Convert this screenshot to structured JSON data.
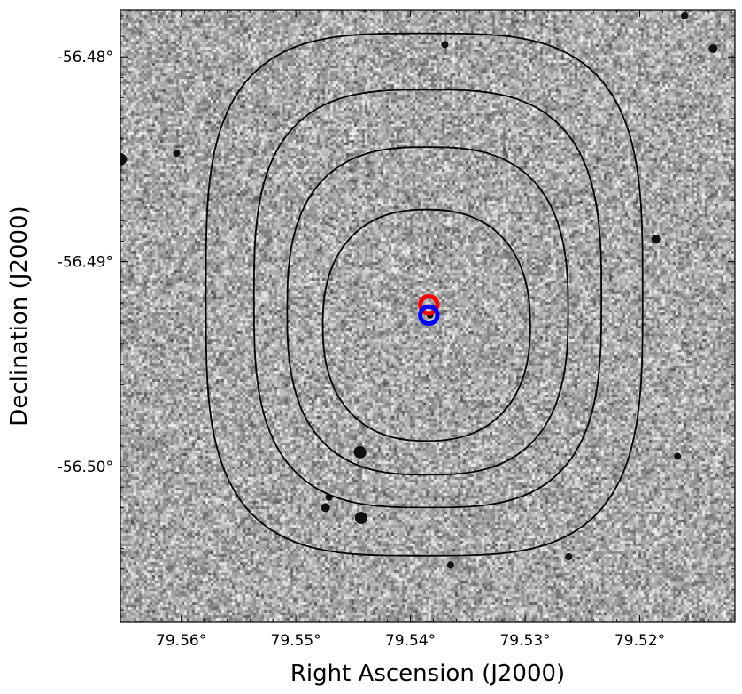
{
  "chart_data": {
    "type": "sky-image",
    "xlabel": "Right Ascension (J2000)",
    "ylabel": "Declination (J2000)",
    "xlim": [
      79.5653,
      79.5117
    ],
    "ylim": [
      -56.4777,
      -56.5076
    ],
    "xticks": [
      {
        "value": 79.56,
        "label": "79.56°"
      },
      {
        "value": 79.55,
        "label": "79.55°"
      },
      {
        "value": 79.54,
        "label": "79.54°"
      },
      {
        "value": 79.53,
        "label": "79.53°"
      },
      {
        "value": 79.52,
        "label": "79.52°"
      }
    ],
    "yticks": [
      {
        "value": -56.5,
        "label": "-56.50°"
      },
      {
        "value": -56.49,
        "label": "-56.49°"
      },
      {
        "value": -56.48,
        "label": "-56.48°"
      }
    ],
    "background": {
      "colormap": "gray",
      "noise": true
    },
    "contours": [
      {
        "level": 1,
        "center": [
          79.5386,
          -56.4931
        ],
        "half_width": 0.00905,
        "half_height": 0.00565
      },
      {
        "level": 2,
        "center": [
          79.5385,
          -56.4924
        ],
        "half_width": 0.01225,
        "half_height": 0.008
      },
      {
        "level": 3,
        "center": [
          79.5385,
          -56.4918
        ],
        "half_width": 0.01515,
        "half_height": 0.0102
      },
      {
        "level": 4,
        "center": [
          79.5388,
          -56.4916
        ],
        "half_width": 0.01905,
        "half_height": 0.01275
      }
    ],
    "markers": [
      {
        "ra": 79.5384,
        "dec": -56.4921,
        "shape": "circle",
        "color": "#ff0000",
        "radius_deg": 0.00075
      },
      {
        "ra": 79.5384,
        "dec": -56.4926,
        "shape": "circle",
        "color": "#0000ff",
        "radius_deg": 0.00075
      }
    ],
    "stars": [
      {
        "ra": 79.5474,
        "dec": -56.502
      },
      {
        "ra": 79.5443,
        "dec": -56.5025
      },
      {
        "ra": 79.5471,
        "dec": -56.5015
      },
      {
        "ra": 79.5444,
        "dec": -56.4993
      },
      {
        "ra": 79.5262,
        "dec": -56.5044
      },
      {
        "ra": 79.5365,
        "dec": -56.5048
      },
      {
        "ra": 79.5167,
        "dec": -56.4995
      },
      {
        "ra": 79.5186,
        "dec": -56.4889
      },
      {
        "ra": 79.5604,
        "dec": -56.4847
      },
      {
        "ra": 79.5136,
        "dec": -56.4796
      },
      {
        "ra": 79.5161,
        "dec": -56.478
      },
      {
        "ra": 79.5653,
        "dec": -56.485
      },
      {
        "ra": 79.5383,
        "dec": -56.4926
      },
      {
        "ra": 79.537,
        "dec": -56.4794
      }
    ]
  }
}
